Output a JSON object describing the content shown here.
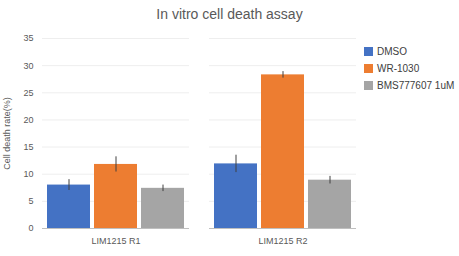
{
  "chart_data": {
    "type": "bar",
    "title": "In vitro cell death assay",
    "y_label": "Cell death rate(%)",
    "categories": [
      "LIM1215 R1",
      "LIM1215 R2"
    ],
    "series": [
      {
        "name": "DMSO",
        "color": "#4472c4",
        "values": [
          8.0,
          11.9
        ],
        "errors": [
          1.0,
          1.6
        ]
      },
      {
        "name": "WR-1030",
        "color": "#ed7d31",
        "values": [
          11.8,
          28.3
        ],
        "errors": [
          1.4,
          0.6
        ]
      },
      {
        "name": "BMS777607 1uM",
        "color": "#a5a5a5",
        "values": [
          7.4,
          8.9
        ],
        "errors": [
          0.6,
          0.7
        ]
      }
    ],
    "ylim": [
      0,
      35
    ],
    "yticks": [
      0,
      5,
      10,
      15,
      20,
      25,
      30,
      35
    ],
    "grid": true,
    "legend": "right"
  }
}
